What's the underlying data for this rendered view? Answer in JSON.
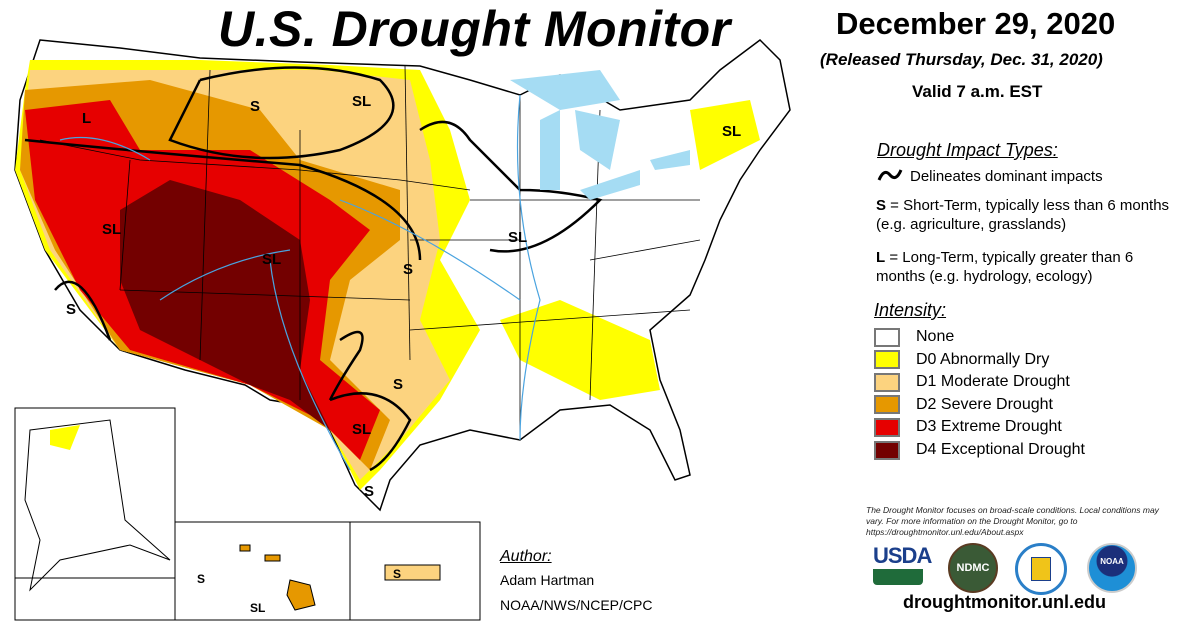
{
  "header": {
    "title": "U.S. Drought Monitor",
    "date": "December 29, 2020",
    "released": "(Released Thursday, Dec. 31, 2020)",
    "valid": "Valid 7 a.m. EST"
  },
  "impact_types": {
    "heading": "Drought Impact Types:",
    "delineates": "Delineates dominant impacts",
    "s_key": "S",
    "s_text": " = Short-Term, typically less than 6 months (e.g. agriculture, grasslands)",
    "l_key": "L",
    "l_text": " = Long-Term, typically greater than 6 months (e.g. hydrology, ecology)"
  },
  "intensity": {
    "heading": "Intensity:",
    "items": [
      {
        "label": "None",
        "color": "#ffffff"
      },
      {
        "label": "D0 Abnormally Dry",
        "color": "#ffff00"
      },
      {
        "label": "D1 Moderate Drought",
        "color": "#fcd37f"
      },
      {
        "label": "D2 Severe Drought",
        "color": "#e69800"
      },
      {
        "label": "D3 Extreme Drought",
        "color": "#e60000"
      },
      {
        "label": "D4 Exceptional Drought",
        "color": "#730000"
      }
    ]
  },
  "map_labels": [
    "L",
    "S",
    "SL",
    "SL",
    "SL",
    "SL",
    "S",
    "SL",
    "S",
    "S",
    "SL",
    "S",
    "S",
    "SL",
    "S"
  ],
  "note": "The Drought Monitor focuses on broad-scale conditions. Local conditions may vary. For more information on the Drought Monitor, go to https://droughtmonitor.unl.edu/About.aspx",
  "logos": {
    "usda": "USDA",
    "ndmc": "NDMC",
    "noaa": "NOAA"
  },
  "website": "droughtmonitor.unl.edu",
  "author": {
    "heading": "Author:",
    "name": "Adam Hartman",
    "org": "NOAA/NWS/NCEP/CPC"
  }
}
